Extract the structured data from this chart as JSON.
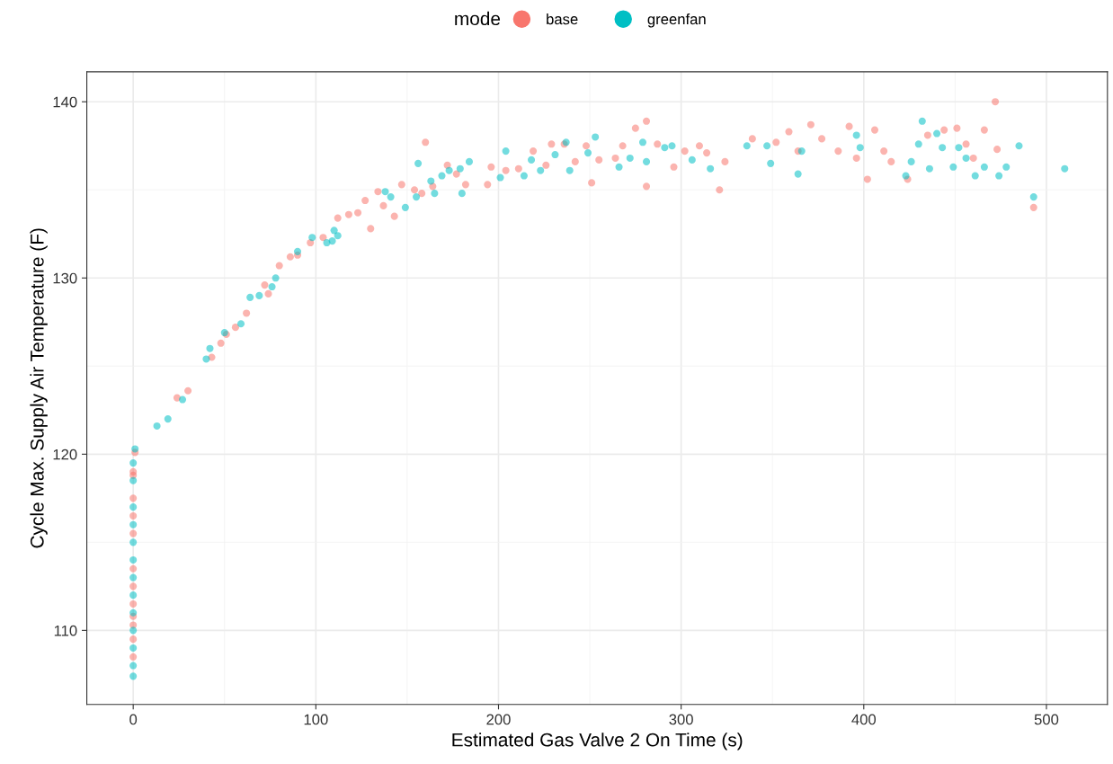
{
  "chart_data": {
    "type": "scatter",
    "xlabel": "Estimated Gas Valve 2 On Time (s)",
    "ylabel": "Cycle Max. Supply Air Temperature (F)",
    "legend_title": "mode",
    "legend": "top",
    "grid": true,
    "marker": "circle",
    "xlim": [
      -25.4,
      533.4
    ],
    "ylim": [
      105.8,
      141.7
    ],
    "xticks": [
      0,
      100,
      200,
      300,
      400,
      500
    ],
    "yticks": [
      110,
      120,
      130,
      140
    ],
    "series": [
      {
        "name": "base",
        "color": "#f8766d",
        "x": [
          0,
          0,
          0,
          0,
          0,
          0,
          0,
          0,
          0,
          0,
          0,
          0,
          1,
          24,
          30,
          43,
          48,
          51,
          56,
          62,
          72,
          74,
          80,
          86,
          90,
          97,
          104,
          112,
          118,
          123,
          127,
          130,
          134,
          137,
          143,
          147,
          154,
          158,
          160,
          164,
          172,
          177,
          182,
          194,
          196,
          204,
          211,
          219,
          226,
          229,
          236,
          242,
          248,
          251,
          255,
          264,
          268,
          275,
          281,
          281,
          287,
          296,
          302,
          310,
          314,
          321,
          324,
          339,
          352,
          359,
          364,
          371,
          377,
          386,
          392,
          396,
          402,
          406,
          411,
          415,
          424,
          435,
          444,
          451,
          456,
          460,
          466,
          472,
          473,
          493
        ],
        "values": [
          108.5,
          109.5,
          110.3,
          110.8,
          111.5,
          112.5,
          113.5,
          115.5,
          116.5,
          117.5,
          118.8,
          119,
          120.1,
          123.2,
          123.6,
          125.5,
          126.3,
          126.8,
          127.2,
          128,
          129.6,
          129.1,
          130.7,
          131.2,
          131.3,
          132,
          132.3,
          133.4,
          133.6,
          133.7,
          134.4,
          132.8,
          134.9,
          134.1,
          133.5,
          135.3,
          135,
          134.8,
          137.7,
          135.2,
          136.4,
          135.9,
          135.3,
          135.3,
          136.3,
          136.1,
          136.2,
          137.2,
          136.4,
          137.6,
          137.6,
          136.6,
          137.5,
          135.4,
          136.7,
          136.8,
          137.5,
          138.5,
          138.9,
          135.2,
          137.6,
          136.3,
          137.2,
          137.5,
          137.1,
          135,
          136.6,
          137.9,
          137.7,
          138.3,
          137.2,
          138.7,
          137.9,
          137.2,
          138.6,
          136.8,
          135.6,
          138.4,
          137.2,
          136.6,
          135.6,
          138.1,
          138.4,
          138.5,
          137.6,
          136.8,
          138.4,
          140,
          137.3,
          134
        ]
      },
      {
        "name": "greenfan",
        "color": "#00bfc4",
        "x": [
          0,
          0,
          0,
          0,
          0,
          0,
          0,
          0,
          0,
          0,
          0,
          0,
          0,
          1,
          13,
          19,
          27,
          40,
          42,
          50,
          59,
          64,
          69,
          76,
          78,
          90,
          98,
          106,
          109,
          112,
          110,
          138,
          141,
          149,
          155,
          156,
          163,
          165,
          169,
          173,
          179,
          180,
          184,
          201,
          204,
          214,
          218,
          223,
          231,
          237,
          239,
          249,
          253,
          266,
          272,
          279,
          281,
          291,
          295,
          306,
          316,
          336,
          347,
          349,
          364,
          366,
          396,
          398,
          423,
          426,
          430,
          432,
          436,
          440,
          443,
          449,
          452,
          456,
          461,
          466,
          474,
          478,
          485,
          493,
          510
        ],
        "values": [
          107.4,
          108,
          109,
          110,
          111,
          112,
          113,
          114,
          115,
          116,
          117,
          118.5,
          119.5,
          120.3,
          121.6,
          122,
          123.1,
          125.4,
          126,
          126.9,
          127.4,
          128.9,
          129,
          129.5,
          130,
          131.5,
          132.3,
          132,
          132.1,
          132.4,
          132.7,
          134.9,
          134.6,
          134,
          134.6,
          136.5,
          135.5,
          134.8,
          135.8,
          136.1,
          136.2,
          134.8,
          136.6,
          135.7,
          137.2,
          135.8,
          136.7,
          136.1,
          137,
          137.7,
          136.1,
          137.1,
          138,
          136.3,
          136.8,
          137.7,
          136.6,
          137.4,
          137.5,
          136.7,
          136.2,
          137.5,
          137.5,
          136.5,
          135.9,
          137.2,
          138.1,
          137.4,
          135.8,
          136.6,
          137.6,
          138.9,
          136.2,
          138.2,
          137.4,
          136.3,
          137.4,
          136.8,
          135.8,
          136.3,
          135.8,
          136.3,
          137.5,
          134.6,
          136.2
        ]
      }
    ]
  }
}
